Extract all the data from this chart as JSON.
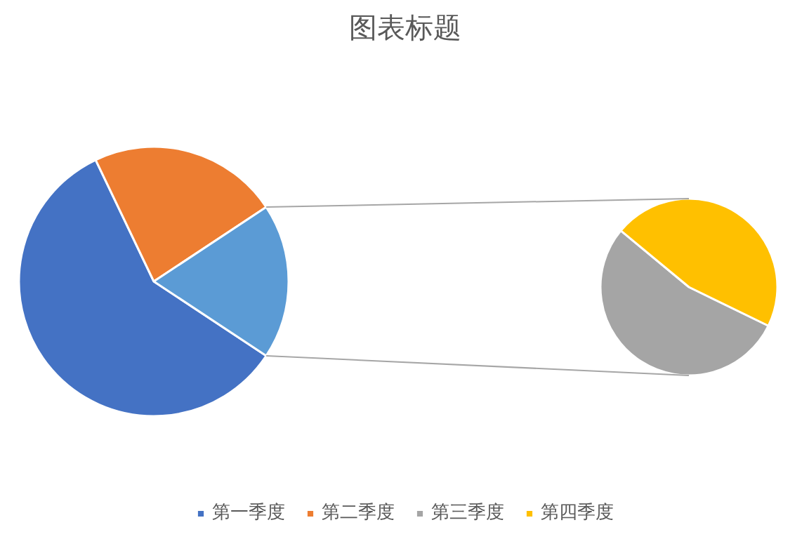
{
  "chart_data": [
    {
      "type": "pie",
      "title": "图表标题",
      "categories": [
        "第一季度",
        "第二季度",
        null
      ],
      "values": [
        58.6,
        22.8,
        18.6
      ],
      "colors": [
        "#4472c4",
        "#ed7d31",
        "#5b9bd5"
      ],
      "legend": "bottom"
    },
    {
      "type": "pie",
      "categories": [
        "第三季度",
        "第四季度"
      ],
      "values": [
        53.8,
        46.2
      ],
      "colors": [
        "#a5a5a5",
        "#ffc000"
      ],
      "legend": "bottom"
    }
  ]
}
